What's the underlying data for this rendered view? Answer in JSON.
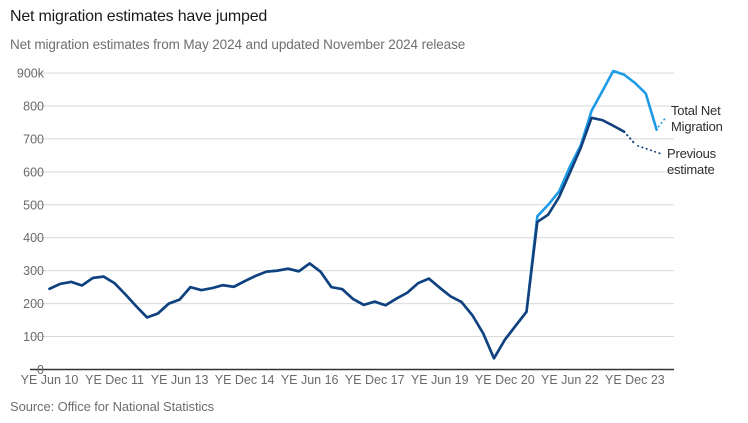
{
  "header": {
    "title": "Net migration estimates have jumped",
    "subtitle": "Net migration estimates from May 2024 and updated November 2024 release"
  },
  "source_note": "Source: Office for National Statistics",
  "chart_data": {
    "type": "line",
    "title": "Net migration estimates have jumped",
    "subtitle": "Net migration estimates from May 2024 and updated November 2024 release",
    "unit": "thousands, UK net migration, quarterly year-ending estimates starting YE Jun 2010",
    "grid": "horizontal",
    "legend_position": "right of line ends, with dotted leader lines",
    "x_axis": {
      "tick_labels": [
        "YE Jun 10",
        "YE Dec 11",
        "YE Jun 13",
        "YE Dec 14",
        "YE Jun 16",
        "YE Dec 17",
        "YE Jun 19",
        "YE Dec 20",
        "YE Jun 22",
        "YE Dec 23"
      ],
      "ticks_every_n_points": 6
    },
    "y_axis": {
      "range": [
        0,
        900
      ],
      "ticks": [
        {
          "value": 0,
          "label": "0"
        },
        {
          "value": 100,
          "label": "100"
        },
        {
          "value": 200,
          "label": "200"
        },
        {
          "value": 300,
          "label": "300"
        },
        {
          "value": 400,
          "label": "400"
        },
        {
          "value": 500,
          "label": "500"
        },
        {
          "value": 600,
          "label": "600"
        },
        {
          "value": 700,
          "label": "700"
        },
        {
          "value": 800,
          "label": "800"
        },
        {
          "value": 900,
          "label": "900k"
        }
      ]
    },
    "series": [
      {
        "name": "Total Net Migration",
        "label_lines": [
          "Total Net",
          "Migration"
        ],
        "color": "#1d9be8",
        "style": "solid",
        "values": [
          245,
          260,
          266,
          255,
          278,
          282,
          262,
          228,
          192,
          158,
          170,
          200,
          212,
          250,
          241,
          247,
          256,
          251,
          268,
          284,
          297,
          300,
          306,
          298,
          322,
          297,
          250,
          244,
          214,
          196,
          206,
          195,
          215,
          233,
          262,
          276,
          248,
          222,
          205,
          165,
          110,
          34,
          90,
          133,
          175,
          465,
          500,
          540,
          615,
          680,
          785,
          845,
          906,
          895,
          870,
          838,
          728
        ]
      },
      {
        "name": "Previous estimate",
        "label_lines": [
          "Previous",
          "estimate"
        ],
        "color": "#13417d",
        "style": "solid, dotted provisional tail",
        "dotted_from_index": 53,
        "values": [
          245,
          260,
          266,
          255,
          278,
          282,
          262,
          228,
          192,
          158,
          170,
          200,
          212,
          250,
          241,
          247,
          256,
          251,
          268,
          284,
          297,
          300,
          306,
          298,
          322,
          297,
          250,
          244,
          214,
          196,
          206,
          195,
          215,
          233,
          262,
          276,
          248,
          222,
          205,
          165,
          110,
          34,
          90,
          133,
          175,
          448,
          470,
          523,
          597,
          672,
          764,
          757,
          740,
          722,
          685
        ]
      }
    ]
  }
}
